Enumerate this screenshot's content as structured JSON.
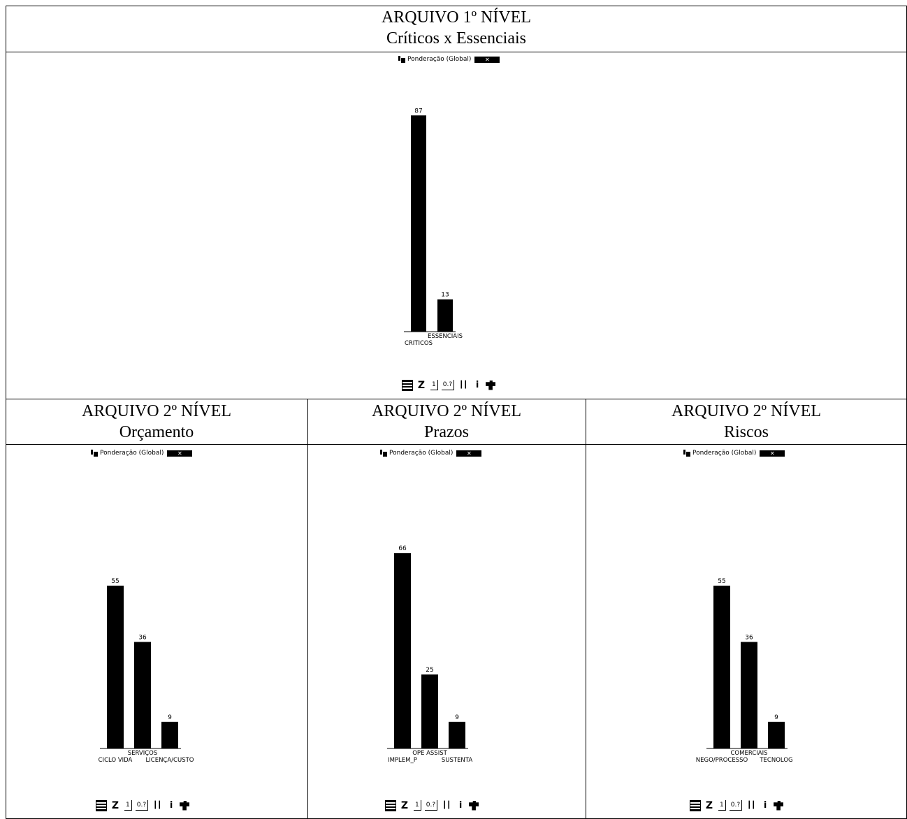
{
  "top": {
    "title_line1": "ARQUIVO 1º NÍVEL",
    "title_line2": "Críticos x Essenciais",
    "window_label": "Ponderação (Global)"
  },
  "panels": [
    {
      "title_line1": "ARQUIVO 2º NÍVEL",
      "title_line2": "Orçamento",
      "window_label": "Ponderação (Global)"
    },
    {
      "title_line1": "ARQUIVO 2º NÍVEL",
      "title_line2": "Prazos",
      "window_label": "Ponderação (Global)"
    },
    {
      "title_line1": "ARQUIVO 2º NÍVEL",
      "title_line2": "Riscos",
      "window_label": "Ponderação (Global)"
    }
  ],
  "toolbar": {
    "btn_one": "1",
    "btn_zero": "0.?"
  },
  "chart_data": [
    {
      "type": "bar",
      "title": "ARQUIVO 1º NÍVEL Críticos x Essenciais",
      "categories": [
        "CRITICOS",
        "ESSENCIAIS"
      ],
      "values": [
        87,
        13
      ],
      "ylim": [
        0,
        100
      ],
      "label_rows": [
        [
          {
            "text": "ESSENCIAIS",
            "bar": 1
          }
        ],
        [
          {
            "text": "CRITICOS",
            "bar": 0
          }
        ]
      ]
    },
    {
      "type": "bar",
      "title": "ARQUIVO 2º NÍVEL Orçamento",
      "categories": [
        "CICLO VIDA",
        "SERVIÇOS",
        "LICENÇA/CUSTO"
      ],
      "values": [
        55,
        36,
        9
      ],
      "ylim": [
        0,
        100
      ],
      "label_rows": [
        [
          {
            "text": "SERVIÇOS",
            "bar": 1
          }
        ],
        [
          {
            "text": "CICLO VIDA",
            "bar": 0
          },
          {
            "text": "LICENÇA/CUSTO",
            "bar": 2
          }
        ]
      ]
    },
    {
      "type": "bar",
      "title": "ARQUIVO 2º NÍVEL Prazos",
      "categories": [
        "IMPLEM_P",
        "OPE ASSIST",
        "SUSTENTA"
      ],
      "values": [
        66,
        25,
        9
      ],
      "ylim": [
        0,
        100
      ],
      "label_rows": [
        [
          {
            "text": "OPE ASSIST",
            "bar": 1
          }
        ],
        [
          {
            "text": "IMPLEM_P",
            "bar": 0
          },
          {
            "text": "SUSTENTA",
            "bar": 2
          }
        ]
      ]
    },
    {
      "type": "bar",
      "title": "ARQUIVO 2º NÍVEL Riscos",
      "categories": [
        "NEGO/PROCESSO",
        "COMERCIAIS",
        "TECNOLOG"
      ],
      "values": [
        55,
        36,
        9
      ],
      "ylim": [
        0,
        100
      ],
      "label_rows": [
        [
          {
            "text": "COMERCIAIS",
            "bar": 1
          }
        ],
        [
          {
            "text": "NEGO/PROCESSO",
            "bar": 0
          },
          {
            "text": "TECNOLOG",
            "bar": 2
          }
        ]
      ]
    }
  ]
}
